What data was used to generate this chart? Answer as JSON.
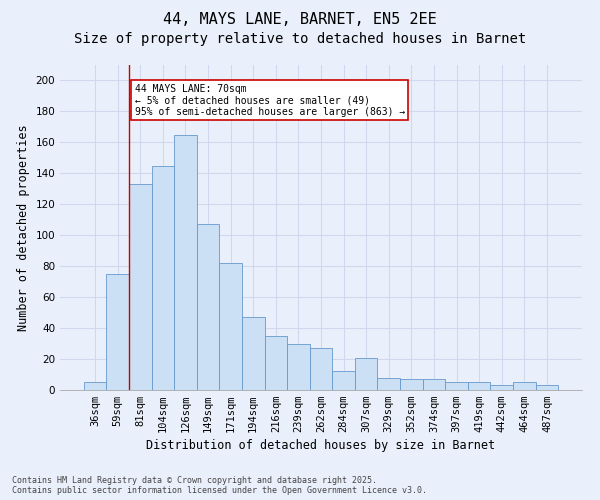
{
  "title1": "44, MAYS LANE, BARNET, EN5 2EE",
  "title2": "Size of property relative to detached houses in Barnet",
  "xlabel": "Distribution of detached houses by size in Barnet",
  "ylabel": "Number of detached properties",
  "categories": [
    "36sqm",
    "59sqm",
    "81sqm",
    "104sqm",
    "126sqm",
    "149sqm",
    "171sqm",
    "194sqm",
    "216sqm",
    "239sqm",
    "262sqm",
    "284sqm",
    "307sqm",
    "329sqm",
    "352sqm",
    "374sqm",
    "397sqm",
    "419sqm",
    "442sqm",
    "464sqm",
    "487sqm"
  ],
  "values": [
    5,
    75,
    133,
    145,
    165,
    107,
    82,
    47,
    35,
    30,
    27,
    12,
    21,
    8,
    7,
    7,
    5,
    5,
    3,
    5,
    3
  ],
  "bar_color": "#cce0f5",
  "bar_edgecolor": "#6699cc",
  "annotation_text": "44 MAYS LANE: 70sqm\n← 5% of detached houses are smaller (49)\n95% of semi-detached houses are larger (863) →",
  "annotation_box_color": "#ffffff",
  "annotation_box_edgecolor": "#cc0000",
  "vline_color": "#cc0000",
  "background_color": "#eaf0fb",
  "grid_color": "#d0d8ee",
  "ylim": [
    0,
    210
  ],
  "yticks": [
    0,
    20,
    40,
    60,
    80,
    100,
    120,
    140,
    160,
    180,
    200
  ],
  "footnote": "Contains HM Land Registry data © Crown copyright and database right 2025.\nContains public sector information licensed under the Open Government Licence v3.0.",
  "title_fontsize": 11,
  "subtitle_fontsize": 10,
  "axis_label_fontsize": 8.5,
  "tick_fontsize": 7.5,
  "footnote_fontsize": 6.0
}
